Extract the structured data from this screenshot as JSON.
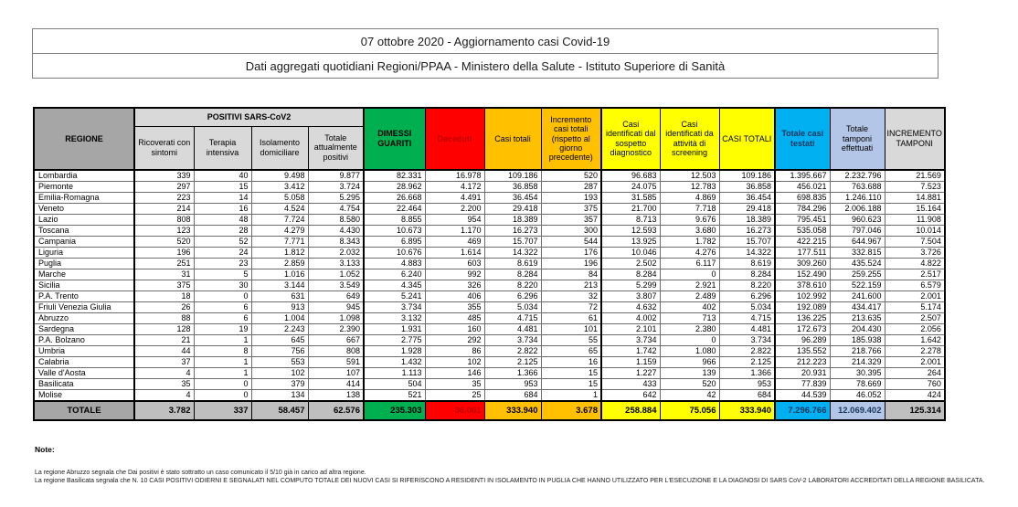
{
  "title": {
    "line1": "07 ottobre 2020 - Aggiornamento casi Covid-19",
    "line2": "Dati aggregati quotidiani Regioni/PPAA - Ministero della Salute - Istituto Superiore di Sanità"
  },
  "palette": {
    "recovered_green": "#00B050",
    "deceased_red": "#FF0000",
    "deceased_text": "#C00000",
    "total_cases_orange": "#FFC000",
    "identified_yellow": "#FFFF00",
    "tested_cyan": "#00B0F0",
    "swabs_lightblue": "#B4C6E7",
    "header_gray": "#D9D9D9",
    "region_header_gray": "#A6A6A6"
  },
  "table": {
    "group_header": "POSITIVI SARS-CoV2",
    "headers": {
      "regione": "REGIONE",
      "ricoverati": "Ricoverati con sintomi",
      "terapia": "Terapia intensiva",
      "isolamento": "Isolamento domiciliare",
      "attualmente_positivi": "Totale attualmente positivi",
      "dimessi": "DIMESSI GUARITI",
      "deceduti": "Deceduti",
      "casi_totali": "Casi totali",
      "incremento_casi": "Incremento casi totali (rispetto al giorno precedente)",
      "sospetto": "Casi identificati dal sospetto diagnostico",
      "screening": "Casi identificati da attività di screening",
      "casi_totali_2": "CASI TOTALI",
      "casi_testati": "Totale casi testati",
      "tamponi": "Totale tamponi effettuati",
      "incremento_tamponi": "INCREMENTO TAMPONI"
    },
    "rows": [
      [
        "Lombardia",
        "339",
        "40",
        "9.498",
        "9.877",
        "82.331",
        "16.978",
        "109.186",
        "520",
        "96.683",
        "12.503",
        "109.186",
        "1.395.667",
        "2.232.796",
        "21.569"
      ],
      [
        "Piemonte",
        "297",
        "15",
        "3.412",
        "3.724",
        "28.962",
        "4.172",
        "36.858",
        "287",
        "24.075",
        "12.783",
        "36.858",
        "456.021",
        "763.688",
        "7.523"
      ],
      [
        "Emilia-Romagna",
        "223",
        "14",
        "5.058",
        "5.295",
        "26.668",
        "4.491",
        "36.454",
        "193",
        "31.585",
        "4.869",
        "36.454",
        "698.835",
        "1.246.110",
        "14.881"
      ],
      [
        "Veneto",
        "214",
        "16",
        "4.524",
        "4.754",
        "22.464",
        "2.200",
        "29.418",
        "375",
        "21.700",
        "7.718",
        "29.418",
        "784.296",
        "2.006.188",
        "15.164"
      ],
      [
        "Lazio",
        "808",
        "48",
        "7.724",
        "8.580",
        "8.855",
        "954",
        "18.389",
        "357",
        "8.713",
        "9.676",
        "18.389",
        "795.451",
        "960.623",
        "11.908"
      ],
      [
        "Toscana",
        "123",
        "28",
        "4.279",
        "4.430",
        "10.673",
        "1.170",
        "16.273",
        "300",
        "12.593",
        "3.680",
        "16.273",
        "535.058",
        "797.046",
        "10.014"
      ],
      [
        "Campania",
        "520",
        "52",
        "7.771",
        "8.343",
        "6.895",
        "469",
        "15.707",
        "544",
        "13.925",
        "1.782",
        "15.707",
        "422.215",
        "644.967",
        "7.504"
      ],
      [
        "Liguria",
        "196",
        "24",
        "1.812",
        "2.032",
        "10.676",
        "1.614",
        "14.322",
        "176",
        "10.046",
        "4.276",
        "14.322",
        "177.511",
        "332.815",
        "3.726"
      ],
      [
        "Puglia",
        "251",
        "23",
        "2.859",
        "3.133",
        "4.883",
        "603",
        "8.619",
        "196",
        "2.502",
        "6.117",
        "8.619",
        "309.260",
        "435.524",
        "4.822"
      ],
      [
        "Marche",
        "31",
        "5",
        "1.016",
        "1.052",
        "6.240",
        "992",
        "8.284",
        "84",
        "8.284",
        "0",
        "8.284",
        "152.490",
        "259.255",
        "2.517"
      ],
      [
        "Sicilia",
        "375",
        "30",
        "3.144",
        "3.549",
        "4.345",
        "326",
        "8.220",
        "213",
        "5.299",
        "2.921",
        "8.220",
        "378.610",
        "522.159",
        "6.579"
      ],
      [
        "P.A. Trento",
        "18",
        "0",
        "631",
        "649",
        "5.241",
        "406",
        "6.296",
        "32",
        "3.807",
        "2.489",
        "6.296",
        "102.992",
        "241.600",
        "2.001"
      ],
      [
        "Friuli Venezia Giulia",
        "26",
        "6",
        "913",
        "945",
        "3.734",
        "355",
        "5.034",
        "72",
        "4.632",
        "402",
        "5.034",
        "192.089",
        "434.417",
        "5.174"
      ],
      [
        "Abruzzo",
        "88",
        "6",
        "1.004",
        "1.098",
        "3.132",
        "485",
        "4.715",
        "61",
        "4.002",
        "713",
        "4.715",
        "136.225",
        "213.635",
        "2.507"
      ],
      [
        "Sardegna",
        "128",
        "19",
        "2.243",
        "2.390",
        "1.931",
        "160",
        "4.481",
        "101",
        "2.101",
        "2.380",
        "4.481",
        "172.673",
        "204.430",
        "2.056"
      ],
      [
        "P.A. Bolzano",
        "21",
        "1",
        "645",
        "667",
        "2.775",
        "292",
        "3.734",
        "55",
        "3.734",
        "0",
        "3.734",
        "96.289",
        "185.938",
        "1.642"
      ],
      [
        "Umbria",
        "44",
        "8",
        "756",
        "808",
        "1.928",
        "86",
        "2.822",
        "65",
        "1.742",
        "1.080",
        "2.822",
        "135.552",
        "218.766",
        "2.278"
      ],
      [
        "Calabria",
        "37",
        "1",
        "553",
        "591",
        "1.432",
        "102",
        "2.125",
        "16",
        "1.159",
        "966",
        "2.125",
        "212.223",
        "214.329",
        "2.001"
      ],
      [
        "Valle d'Aosta",
        "4",
        "1",
        "102",
        "107",
        "1.113",
        "146",
        "1.366",
        "15",
        "1.227",
        "139",
        "1.366",
        "20.931",
        "30.395",
        "264"
      ],
      [
        "Basilicata",
        "35",
        "0",
        "379",
        "414",
        "504",
        "35",
        "953",
        "15",
        "433",
        "520",
        "953",
        "77.839",
        "78.669",
        "760"
      ],
      [
        "Molise",
        "4",
        "0",
        "134",
        "138",
        "521",
        "25",
        "684",
        "1",
        "642",
        "42",
        "684",
        "44.539",
        "46.052",
        "424"
      ]
    ],
    "total_row": [
      "TOTALE",
      "3.782",
      "337",
      "58.457",
      "62.576",
      "235.303",
      "36.061",
      "333.940",
      "3.678",
      "258.884",
      "75.056",
      "333.940",
      "7.296.766",
      "12.069.402",
      "125.314"
    ]
  },
  "notes": {
    "label": "Note:",
    "line1": "La regione Abruzzo segnala che  Dai positivi è stato sottratto un caso comunicato il 5/10 già in carico ad altra regione.",
    "line2": "La regione Basilicata segnala che N. 10 CASI POSITIVI ODIERNI E SEGNALATI NEL COMPUTO TOTALE DEI NUOVI CASI SI RIFERISCONO A RESIDENTI IN ISOLAMENTO IN PUGLIA CHE HANNO UTILIZZATO PER L'ESECUZIONE E LA DIAGNOSI DI SARS CoV-2 LABORATORI ACCREDITATI DELLA REGIONE BASILICATA."
  }
}
